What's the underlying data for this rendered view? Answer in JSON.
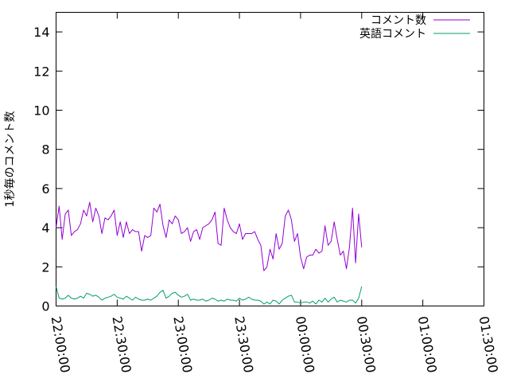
{
  "chart_data": {
    "type": "line",
    "title": "",
    "xlabel": "",
    "ylabel": "1秒毎のコメント数",
    "ylim": [
      0,
      15
    ],
    "y_ticks": [
      "0",
      "2",
      "4",
      "6",
      "8",
      "10",
      "12",
      "14"
    ],
    "x_range_minutes": [
      0,
      210
    ],
    "x_ticks": [
      "22:00:00",
      "22:30:00",
      "23:00:00",
      "23:30:00",
      "00:00:00",
      "00:30:00",
      "01:00:00",
      "01:30:00"
    ],
    "grid": false,
    "legend_position": "top-right",
    "series": [
      {
        "name": "コメント数",
        "color": "#9400d3",
        "points": [
          [
            0.0,
            4.0
          ],
          [
            1.5,
            5.1
          ],
          [
            3.0,
            3.4
          ],
          [
            4.5,
            4.7
          ],
          [
            6.0,
            4.9
          ],
          [
            7.5,
            3.6
          ],
          [
            9.0,
            3.8
          ],
          [
            10.5,
            3.9
          ],
          [
            12.0,
            4.2
          ],
          [
            13.5,
            4.9
          ],
          [
            15.0,
            4.6
          ],
          [
            16.5,
            5.3
          ],
          [
            18.0,
            4.3
          ],
          [
            19.5,
            5.0
          ],
          [
            21.0,
            4.6
          ],
          [
            22.5,
            3.7
          ],
          [
            24.0,
            4.5
          ],
          [
            25.5,
            4.4
          ],
          [
            27.0,
            4.6
          ],
          [
            28.5,
            4.9
          ],
          [
            30.0,
            3.6
          ],
          [
            31.5,
            4.3
          ],
          [
            33.0,
            3.5
          ],
          [
            34.5,
            4.3
          ],
          [
            36.0,
            3.7
          ],
          [
            37.5,
            3.9
          ],
          [
            39.0,
            3.8
          ],
          [
            40.5,
            3.8
          ],
          [
            42.0,
            2.8
          ],
          [
            43.5,
            3.6
          ],
          [
            45.0,
            3.5
          ],
          [
            46.5,
            3.6
          ],
          [
            48.0,
            5.0
          ],
          [
            49.5,
            4.8
          ],
          [
            51.0,
            5.2
          ],
          [
            52.5,
            4.1
          ],
          [
            54.0,
            3.5
          ],
          [
            55.5,
            4.4
          ],
          [
            57.0,
            4.2
          ],
          [
            58.5,
            4.6
          ],
          [
            60.0,
            4.4
          ],
          [
            61.5,
            3.7
          ],
          [
            63.0,
            3.8
          ],
          [
            64.5,
            4.0
          ],
          [
            66.0,
            3.3
          ],
          [
            67.5,
            3.8
          ],
          [
            69.0,
            3.9
          ],
          [
            70.5,
            3.4
          ],
          [
            72.0,
            4.0
          ],
          [
            73.5,
            4.1
          ],
          [
            75.0,
            4.2
          ],
          [
            76.5,
            4.4
          ],
          [
            78.0,
            4.8
          ],
          [
            79.5,
            3.2
          ],
          [
            81.0,
            3.1
          ],
          [
            82.5,
            5.0
          ],
          [
            84.0,
            4.4
          ],
          [
            85.5,
            4.0
          ],
          [
            87.0,
            3.8
          ],
          [
            88.5,
            3.7
          ],
          [
            90.0,
            4.2
          ],
          [
            91.5,
            3.4
          ],
          [
            93.0,
            3.7
          ],
          [
            94.5,
            3.7
          ],
          [
            96.0,
            3.7
          ],
          [
            97.5,
            3.8
          ],
          [
            99.0,
            3.4
          ],
          [
            100.5,
            3.1
          ],
          [
            102.0,
            1.8
          ],
          [
            103.5,
            2.0
          ],
          [
            105.0,
            2.9
          ],
          [
            106.5,
            2.4
          ],
          [
            108.0,
            3.7
          ],
          [
            109.5,
            2.9
          ],
          [
            111.0,
            3.2
          ],
          [
            112.5,
            4.6
          ],
          [
            114.0,
            4.9
          ],
          [
            115.5,
            4.4
          ],
          [
            117.0,
            3.3
          ],
          [
            118.5,
            3.7
          ],
          [
            120.0,
            2.5
          ],
          [
            121.5,
            1.9
          ],
          [
            123.0,
            2.5
          ],
          [
            124.5,
            2.6
          ],
          [
            126.0,
            2.6
          ],
          [
            127.5,
            2.9
          ],
          [
            129.0,
            2.7
          ],
          [
            130.5,
            2.8
          ],
          [
            132.0,
            4.1
          ],
          [
            133.5,
            3.1
          ],
          [
            135.0,
            3.3
          ],
          [
            136.5,
            4.3
          ],
          [
            138.0,
            3.4
          ],
          [
            139.5,
            2.6
          ],
          [
            141.0,
            2.8
          ],
          [
            142.5,
            1.9
          ],
          [
            144.0,
            3.0
          ],
          [
            145.5,
            5.0
          ],
          [
            147.0,
            2.2
          ],
          [
            148.5,
            4.7
          ],
          [
            150.0,
            3.0
          ]
        ]
      },
      {
        "name": "英語コメント",
        "color": "#009e73",
        "points": [
          [
            0.0,
            1.0
          ],
          [
            1.5,
            0.4
          ],
          [
            3.0,
            0.35
          ],
          [
            4.5,
            0.4
          ],
          [
            6.0,
            0.55
          ],
          [
            7.5,
            0.4
          ],
          [
            9.0,
            0.35
          ],
          [
            10.5,
            0.4
          ],
          [
            12.0,
            0.5
          ],
          [
            13.5,
            0.4
          ],
          [
            15.0,
            0.65
          ],
          [
            16.5,
            0.6
          ],
          [
            18.0,
            0.5
          ],
          [
            19.5,
            0.55
          ],
          [
            21.0,
            0.45
          ],
          [
            22.5,
            0.3
          ],
          [
            24.0,
            0.4
          ],
          [
            25.5,
            0.45
          ],
          [
            27.0,
            0.5
          ],
          [
            28.5,
            0.6
          ],
          [
            30.0,
            0.45
          ],
          [
            31.5,
            0.4
          ],
          [
            33.0,
            0.35
          ],
          [
            34.5,
            0.5
          ],
          [
            36.0,
            0.4
          ],
          [
            37.5,
            0.3
          ],
          [
            39.0,
            0.45
          ],
          [
            40.5,
            0.35
          ],
          [
            42.0,
            0.3
          ],
          [
            43.5,
            0.3
          ],
          [
            45.0,
            0.35
          ],
          [
            46.5,
            0.3
          ],
          [
            48.0,
            0.4
          ],
          [
            49.5,
            0.5
          ],
          [
            51.0,
            0.7
          ],
          [
            52.5,
            0.8
          ],
          [
            54.0,
            0.4
          ],
          [
            55.5,
            0.5
          ],
          [
            57.0,
            0.65
          ],
          [
            58.5,
            0.7
          ],
          [
            60.0,
            0.55
          ],
          [
            61.5,
            0.45
          ],
          [
            63.0,
            0.5
          ],
          [
            64.5,
            0.6
          ],
          [
            66.0,
            0.3
          ],
          [
            67.5,
            0.35
          ],
          [
            69.0,
            0.3
          ],
          [
            70.5,
            0.3
          ],
          [
            72.0,
            0.35
          ],
          [
            73.5,
            0.25
          ],
          [
            75.0,
            0.3
          ],
          [
            76.5,
            0.4
          ],
          [
            78.0,
            0.35
          ],
          [
            79.5,
            0.25
          ],
          [
            81.0,
            0.3
          ],
          [
            82.5,
            0.25
          ],
          [
            84.0,
            0.35
          ],
          [
            85.5,
            0.3
          ],
          [
            87.0,
            0.3
          ],
          [
            88.5,
            0.25
          ],
          [
            90.0,
            0.4
          ],
          [
            91.5,
            0.3
          ],
          [
            93.0,
            0.35
          ],
          [
            94.5,
            0.45
          ],
          [
            96.0,
            0.35
          ],
          [
            97.5,
            0.3
          ],
          [
            99.0,
            0.3
          ],
          [
            100.5,
            0.25
          ],
          [
            102.0,
            0.1
          ],
          [
            103.5,
            0.2
          ],
          [
            105.0,
            0.1
          ],
          [
            106.5,
            0.3
          ],
          [
            108.0,
            0.25
          ],
          [
            109.5,
            0.1
          ],
          [
            111.0,
            0.3
          ],
          [
            112.5,
            0.4
          ],
          [
            114.0,
            0.5
          ],
          [
            115.5,
            0.55
          ],
          [
            117.0,
            0.2
          ],
          [
            118.5,
            0.2
          ],
          [
            120.0,
            0.15
          ],
          [
            121.5,
            0.2
          ],
          [
            123.0,
            0.2
          ],
          [
            124.5,
            0.15
          ],
          [
            126.0,
            0.25
          ],
          [
            127.5,
            0.1
          ],
          [
            129.0,
            0.3
          ],
          [
            130.5,
            0.2
          ],
          [
            132.0,
            0.4
          ],
          [
            133.5,
            0.2
          ],
          [
            135.0,
            0.35
          ],
          [
            136.5,
            0.45
          ],
          [
            138.0,
            0.2
          ],
          [
            139.5,
            0.3
          ],
          [
            141.0,
            0.25
          ],
          [
            142.5,
            0.2
          ],
          [
            144.0,
            0.3
          ],
          [
            145.5,
            0.3
          ],
          [
            147.0,
            0.15
          ],
          [
            148.5,
            0.4
          ],
          [
            150.0,
            1.0
          ]
        ]
      }
    ]
  }
}
